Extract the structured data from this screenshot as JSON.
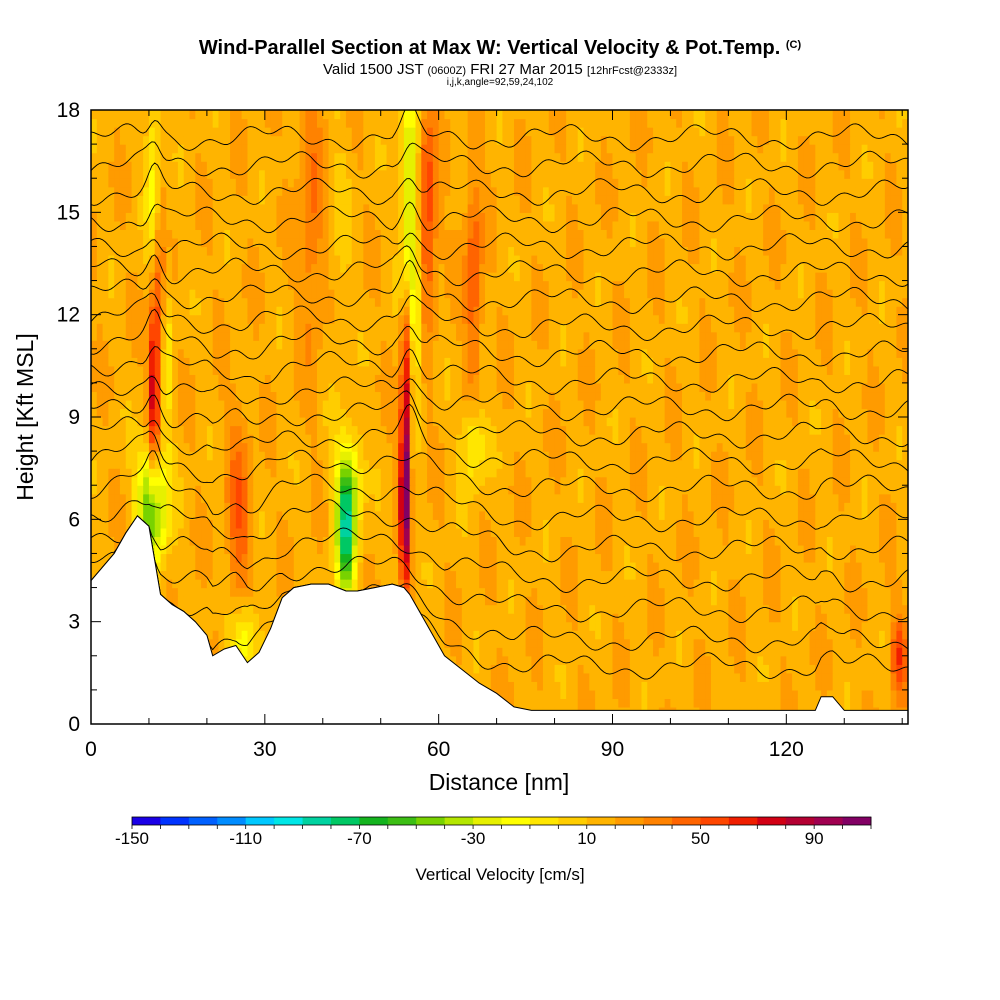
{
  "title": {
    "main": "Wind-Parallel Section at Max W: Vertical Velocity & Pot.Temp.",
    "mark": "(C)",
    "valid_prefix": "Valid 1500 JST",
    "valid_utc": "(0600Z)",
    "valid_date": "FRI 27 Mar 2015",
    "fcst": "[12hrFcst@2333z]",
    "params": "i,j,k,angle=92,59,24,102"
  },
  "chart_data": {
    "type": "heatmap",
    "xlabel": "Distance [nm]",
    "ylabel": "Height [Kft MSL]",
    "xlim": [
      0,
      141
    ],
    "ylim": [
      0,
      18
    ],
    "x_ticks": [
      0,
      30,
      60,
      90,
      120
    ],
    "y_ticks": [
      0,
      3,
      6,
      9,
      12,
      15,
      18
    ],
    "colorbar": {
      "title": "Vertical Velocity [cm/s]",
      "min": -150,
      "max": 110,
      "step": 10,
      "labels": [
        -150,
        -110,
        -70,
        -30,
        10,
        50,
        90
      ],
      "colors": [
        "#1a00e6",
        "#0033ff",
        "#0060ff",
        "#008cff",
        "#00c8ff",
        "#00e6e6",
        "#00d2a0",
        "#00c864",
        "#14b41e",
        "#3cbe14",
        "#78d200",
        "#b4e600",
        "#e6f000",
        "#ffff00",
        "#ffe600",
        "#ffcd00",
        "#ffb400",
        "#ff9b00",
        "#ff8200",
        "#ff6400",
        "#ff4600",
        "#f01e00",
        "#d20014",
        "#b40032",
        "#a00050",
        "#820064"
      ]
    },
    "terrain_kft": [
      [
        0,
        4.2
      ],
      [
        2,
        4.6
      ],
      [
        4,
        5.0
      ],
      [
        6,
        5.6
      ],
      [
        8,
        6.1
      ],
      [
        10,
        5.8
      ],
      [
        11,
        4.8
      ],
      [
        12,
        3.8
      ],
      [
        14,
        3.5
      ],
      [
        16,
        3.3
      ],
      [
        18,
        3.0
      ],
      [
        20,
        2.6
      ],
      [
        21,
        2.0
      ],
      [
        23,
        2.2
      ],
      [
        25,
        2.3
      ],
      [
        27,
        1.8
      ],
      [
        29,
        2.1
      ],
      [
        31,
        2.8
      ],
      [
        33,
        3.7
      ],
      [
        35,
        4.0
      ],
      [
        38,
        4.1
      ],
      [
        41,
        4.1
      ],
      [
        44,
        3.9
      ],
      [
        46,
        3.9
      ],
      [
        49,
        4.0
      ],
      [
        52,
        4.1
      ],
      [
        54,
        4.0
      ],
      [
        55,
        3.8
      ],
      [
        57,
        3.2
      ],
      [
        59,
        2.6
      ],
      [
        61,
        2.0
      ],
      [
        64,
        1.6
      ],
      [
        67,
        1.2
      ],
      [
        70,
        0.9
      ],
      [
        73,
        0.5
      ],
      [
        76,
        0.4
      ],
      [
        80,
        0.4
      ],
      [
        100,
        0.4
      ],
      [
        120,
        0.4
      ],
      [
        125,
        0.4
      ],
      [
        126,
        0.8
      ],
      [
        128,
        0.8
      ],
      [
        130,
        0.4
      ],
      [
        141,
        0.4
      ]
    ],
    "velocity_features": [
      {
        "x": 10.5,
        "y": 6.4,
        "wx": 2.5,
        "wy": 1.8,
        "v": -80
      },
      {
        "x": 10.8,
        "y": 9.5,
        "wx": 1.0,
        "wy": 3.0,
        "v": 60
      },
      {
        "x": 11.0,
        "y": 16.0,
        "wx": 1.4,
        "wy": 3.0,
        "v": -40
      },
      {
        "x": 11.8,
        "y": 13.0,
        "wx": 1.2,
        "wy": 4.0,
        "v": 35
      },
      {
        "x": 13.0,
        "y": 11.0,
        "wx": 1.2,
        "wy": 3.0,
        "v": -25
      },
      {
        "x": 25.5,
        "y": 6.0,
        "wx": 2.0,
        "wy": 3.0,
        "v": 30
      },
      {
        "x": 26.5,
        "y": 2.5,
        "wx": 2.5,
        "wy": 1.2,
        "v": -40
      },
      {
        "x": 44.0,
        "y": 5.5,
        "wx": 1.7,
        "wy": 1.8,
        "v": -85
      },
      {
        "x": 44.5,
        "y": 7.2,
        "wx": 2.2,
        "wy": 1.5,
        "v": -45
      },
      {
        "x": 54.2,
        "y": 7.0,
        "wx": 0.8,
        "wy": 2.8,
        "v": 110
      },
      {
        "x": 54.5,
        "y": 11.0,
        "wx": 1.0,
        "wy": 2.0,
        "v": 40
      },
      {
        "x": 55.0,
        "y": 15.5,
        "wx": 1.5,
        "wy": 3.0,
        "v": -60
      },
      {
        "x": 56.0,
        "y": 11.8,
        "wx": 1.1,
        "wy": 2.2,
        "v": -40
      },
      {
        "x": 58.0,
        "y": 15.0,
        "wx": 1.7,
        "wy": 3.0,
        "v": 45
      },
      {
        "x": 66.0,
        "y": 8.2,
        "wx": 2.0,
        "wy": 1.2,
        "v": -35
      },
      {
        "x": 66.0,
        "y": 13.0,
        "wx": 1.5,
        "wy": 3.0,
        "v": 35
      },
      {
        "x": 43.0,
        "y": 14.0,
        "wx": 1.5,
        "wy": 4.0,
        "v": -10
      },
      {
        "x": 38.0,
        "y": 15.0,
        "wx": 2.0,
        "wy": 4.0,
        "v": 25
      },
      {
        "x": 139.5,
        "y": 2.0,
        "wx": 1.5,
        "wy": 1.2,
        "v": 40
      }
    ],
    "theta_levels_kft": [
      1.5,
      2.3,
      3.2,
      4.1,
      5.0,
      5.9,
      6.8,
      7.6,
      8.4,
      9.2,
      10.0,
      10.8,
      11.6,
      12.4,
      13.2,
      14.0,
      14.8,
      15.6,
      16.4,
      17.2
    ]
  }
}
